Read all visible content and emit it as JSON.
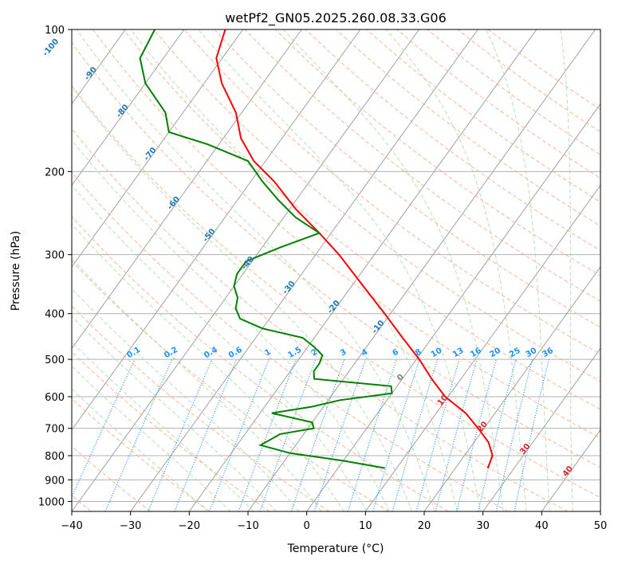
{
  "chart_data": {
    "type": "skew-t",
    "title": "wetPf2_GN05.2025.260.08.33.G06",
    "xlabel": "Temperature (°C)",
    "ylabel": "Pressure (hPa)",
    "xlim": [
      -40,
      50
    ],
    "ylim_hpa": [
      1050,
      100
    ],
    "x_ticks": [
      -40,
      -30,
      -20,
      -10,
      0,
      10,
      20,
      30,
      40,
      50
    ],
    "y_ticks": [
      100,
      200,
      300,
      400,
      500,
      600,
      700,
      800,
      900,
      1000
    ],
    "x_tick_labels": [
      "−40",
      "−30",
      "−20",
      "−10",
      "0",
      "10",
      "20",
      "30",
      "40",
      "50"
    ],
    "y_tick_labels": [
      "100",
      "200",
      "300",
      "400",
      "500",
      "600",
      "700",
      "800",
      "900",
      "1000"
    ],
    "temperature_profile": {
      "name": "Temperature",
      "color": "#ff0000",
      "pressure": [
        850,
        800,
        750,
        700,
        650,
        600,
        550,
        500,
        450,
        400,
        350,
        300,
        270,
        240,
        210,
        190,
        170,
        150,
        130,
        115,
        100
      ],
      "temp": [
        25.5,
        24.8,
        22.5,
        19.0,
        15.0,
        9.5,
        5.0,
        0.5,
        -5.0,
        -11.0,
        -18.0,
        -26.0,
        -32.0,
        -39.0,
        -46.0,
        -52.0,
        -57.0,
        -61.0,
        -67.0,
        -71.0,
        -73.0
      ]
    },
    "dewpoint_profile": {
      "name": "Dewpoint",
      "color": "#008000",
      "pressure": [
        850,
        820,
        790,
        760,
        720,
        700,
        680,
        650,
        630,
        610,
        590,
        570,
        550,
        530,
        510,
        490,
        470,
        450,
        430,
        410,
        390,
        370,
        350,
        330,
        310,
        290,
        270,
        250,
        230,
        210,
        190,
        175,
        165,
        150,
        130,
        115,
        100
      ],
      "dewpoint": [
        8.0,
        0.0,
        -10.0,
        -16.0,
        -14.0,
        -9.0,
        -10.0,
        -18.0,
        -12.0,
        -8.0,
        0.0,
        -1.0,
        -15.0,
        -16.0,
        -16.0,
        -16.5,
        -19.0,
        -22.0,
        -30.0,
        -35.0,
        -37.0,
        -38.0,
        -40.0,
        -41.0,
        -41.0,
        -37.0,
        -32.0,
        -38.0,
        -43.0,
        -48.0,
        -53.0,
        -62.0,
        -70.0,
        -73.0,
        -80.0,
        -84.0,
        -85.0
      ]
    },
    "dry_adiabat_labels": [
      "-100",
      "-90",
      "-80",
      "-70",
      "-60",
      "-50",
      "-40",
      "-30",
      "-20",
      "-10",
      "0",
      "10",
      "20",
      "30",
      "40"
    ],
    "mixing_ratio_labels": [
      "0.1",
      "0.2",
      "0.4",
      "0.6",
      "1",
      "1.5",
      "2",
      "3",
      "4",
      "6",
      "8",
      "10",
      "13",
      "16",
      "20",
      "25",
      "30",
      "36"
    ],
    "grid": true
  }
}
